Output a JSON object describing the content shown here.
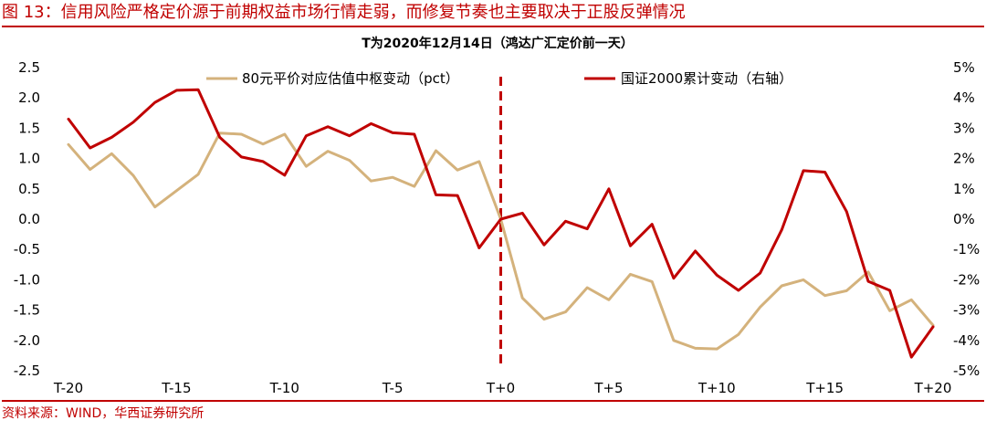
{
  "figure_title": "图 13：信用风险严格定价源于前期权益市场行情走弱，而修复节奏也主要取决于正股反弹情况",
  "source_note": "资料来源：WIND，华西证券研究所",
  "colors": {
    "accent": "#c00000",
    "series_tan": "#d4b27c",
    "series_red": "#c00000"
  },
  "chart_data": {
    "type": "line",
    "title": "T为2020年12月14日（鸿达广汇定价前一天）",
    "categories": [
      "T-20",
      "T-19",
      "T-18",
      "T-17",
      "T-16",
      "T-15",
      "T-14",
      "T-13",
      "T-12",
      "T-11",
      "T-10",
      "T-9",
      "T-8",
      "T-7",
      "T-6",
      "T-5",
      "T-4",
      "T-3",
      "T-2",
      "T-1",
      "T+0",
      "T+1",
      "T+2",
      "T+3",
      "T+4",
      "T+5",
      "T+6",
      "T+7",
      "T+8",
      "T+9",
      "T+10",
      "T+11",
      "T+12",
      "T+13",
      "T+14",
      "T+15",
      "T+16",
      "T+17",
      "T+18",
      "T+19",
      "T+20"
    ],
    "x_tick_labels": [
      "T-20",
      "T-15",
      "T-10",
      "T-5",
      "T+0",
      "T+5",
      "T+10",
      "T+15",
      "T+20"
    ],
    "x_tick_indices": [
      0,
      5,
      10,
      15,
      20,
      25,
      30,
      35,
      40
    ],
    "y_left": {
      "min": -2.5,
      "max": 2.5,
      "step": 0.5,
      "tick_labels": [
        "-2.5",
        "-2.0",
        "-1.5",
        "-1.0",
        "-0.5",
        "0.0",
        "0.5",
        "1.0",
        "1.5",
        "2.0",
        "2.5"
      ]
    },
    "y_right": {
      "min": -5,
      "max": 5,
      "step": 1,
      "tick_labels": [
        "-5%",
        "-4%",
        "-3%",
        "-2%",
        "-1%",
        "0%",
        "1%",
        "2%",
        "3%",
        "4%",
        "5%"
      ]
    },
    "reference_line": {
      "category_index": 20,
      "style": "dashed"
    },
    "legend_position": "top",
    "series": [
      {
        "name": "80元平价对应估值中枢变动（pct）",
        "axis": "left",
        "color": "#d4b27c",
        "values": [
          1.23,
          0.82,
          1.08,
          0.72,
          0.2,
          0.47,
          0.74,
          1.42,
          1.4,
          1.24,
          1.4,
          0.87,
          1.12,
          0.97,
          0.63,
          0.69,
          0.54,
          1.13,
          0.81,
          0.95,
          0.0,
          -1.3,
          -1.65,
          -1.53,
          -1.13,
          -1.33,
          -0.91,
          -1.03,
          -2.0,
          -2.13,
          -2.14,
          -1.9,
          -1.45,
          -1.1,
          -1.0,
          -1.26,
          -1.18,
          -0.87,
          -1.51,
          -1.33,
          -1.75
        ]
      },
      {
        "name": "国证2000累计变动（右轴）",
        "axis": "right",
        "color": "#c00000",
        "values": [
          3.3,
          2.35,
          2.7,
          3.2,
          3.85,
          4.25,
          4.27,
          2.7,
          2.05,
          1.9,
          1.45,
          2.75,
          3.05,
          2.75,
          3.15,
          2.85,
          2.8,
          0.8,
          0.78,
          -0.95,
          0.0,
          0.2,
          -0.85,
          -0.07,
          -0.32,
          1.0,
          -0.88,
          -0.17,
          -1.95,
          -1.05,
          -1.85,
          -2.35,
          -1.78,
          -0.35,
          1.6,
          1.55,
          0.25,
          -2.05,
          -2.35,
          -4.55,
          -3.55
        ]
      }
    ]
  }
}
